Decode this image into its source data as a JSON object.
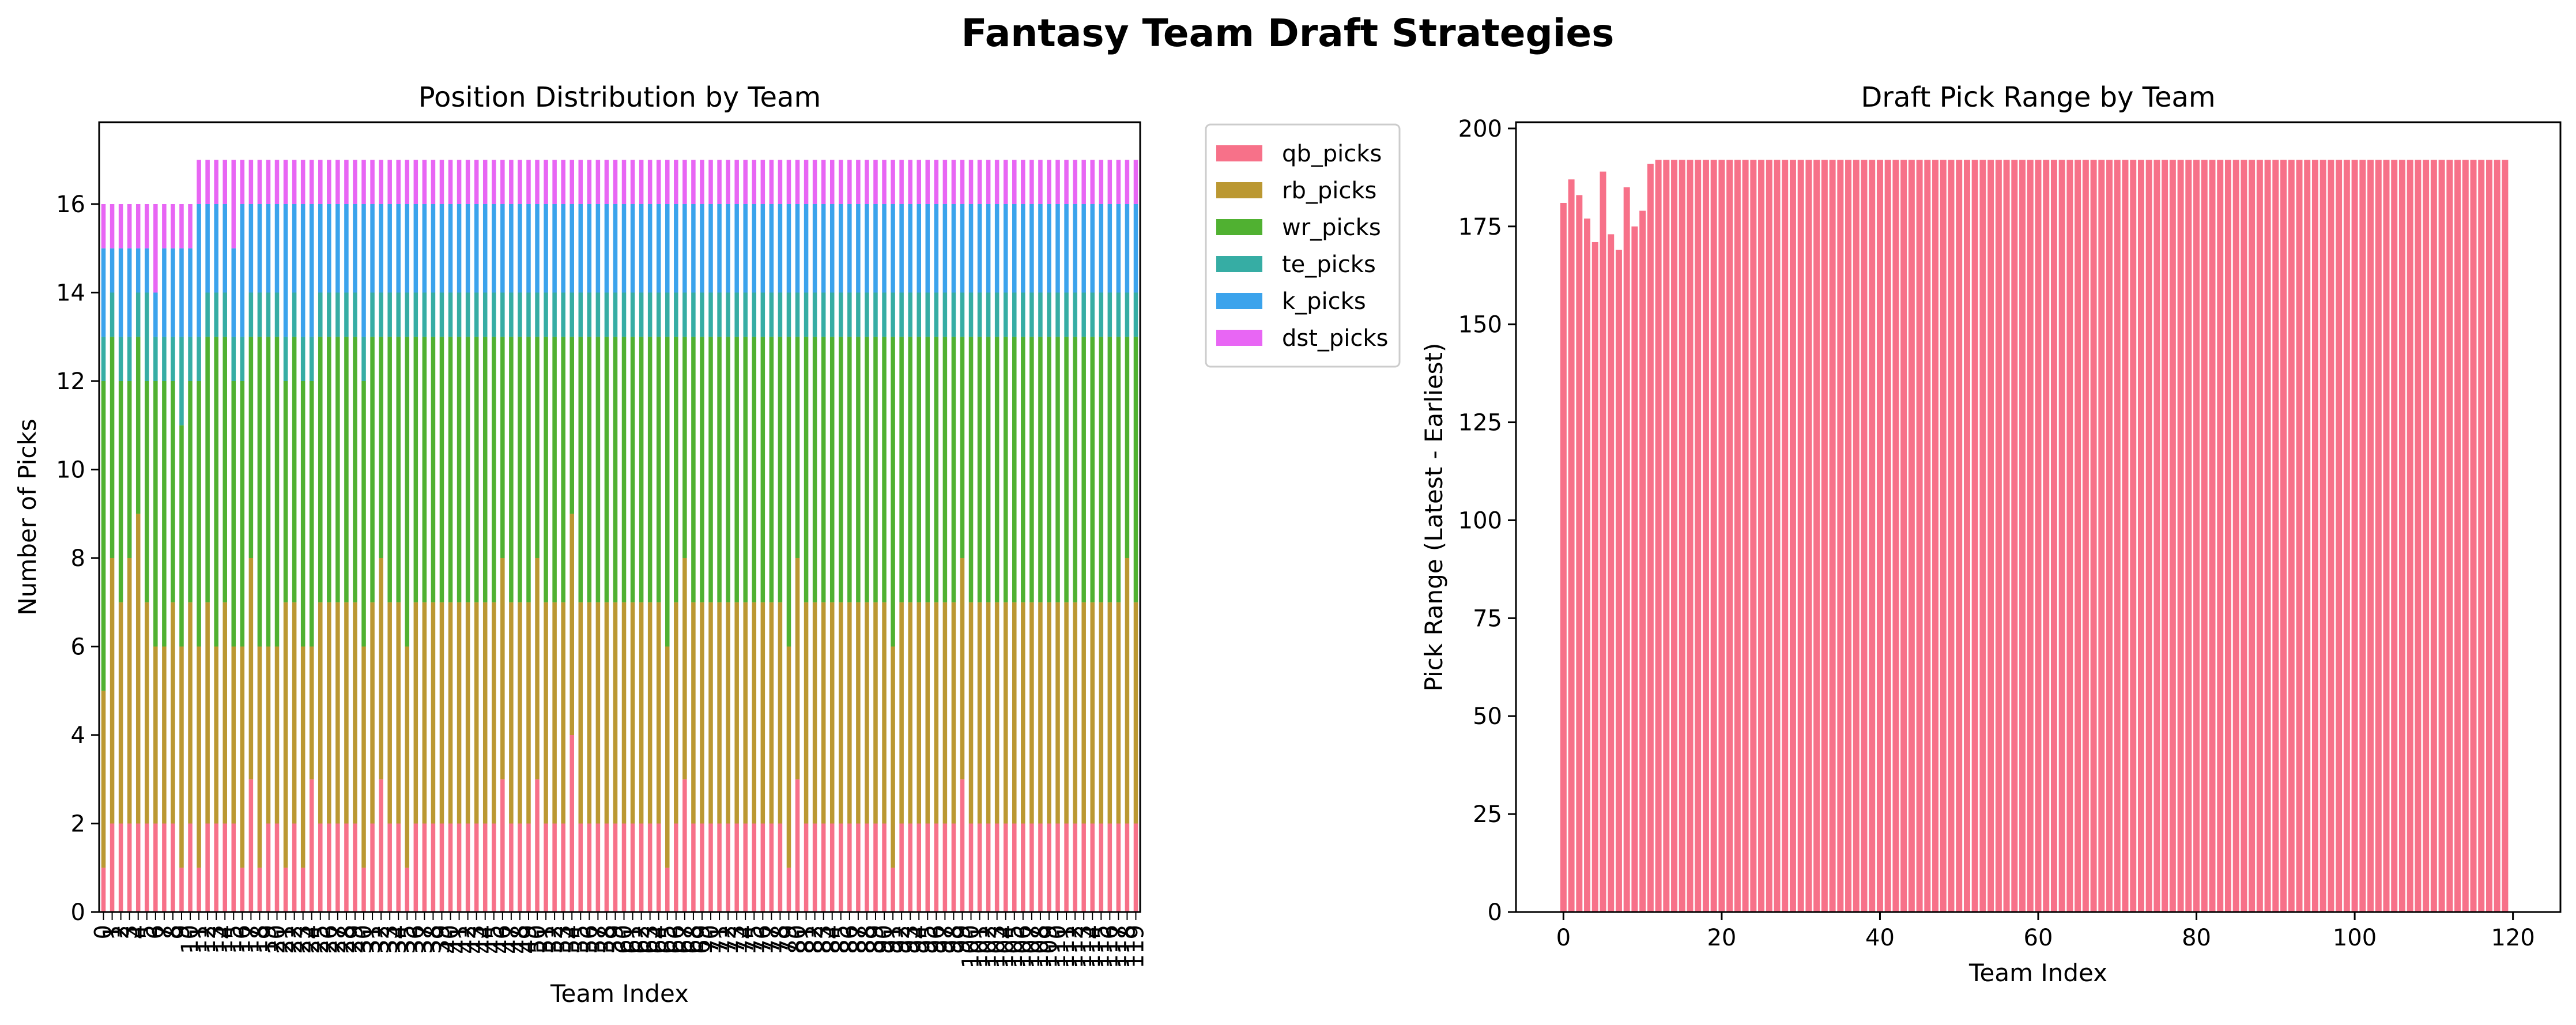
{
  "figure": {
    "title": "Fantasy Team Draft Strategies"
  },
  "chart_data": [
    {
      "type": "bar",
      "stacked": true,
      "title": "Position Distribution by Team",
      "xlabel": "Team Index",
      "ylabel": "Number of Picks",
      "ylim": [
        0,
        17.85
      ],
      "yticks": [
        0,
        2,
        4,
        6,
        8,
        10,
        12,
        14,
        16
      ],
      "x": [
        0,
        1,
        2,
        3,
        4,
        5,
        6,
        7,
        8,
        9,
        10,
        11,
        12,
        13,
        14,
        15,
        16,
        17,
        18,
        19,
        20,
        21,
        22,
        23,
        24,
        25,
        26,
        27,
        28,
        29,
        30,
        31,
        32,
        33,
        34,
        35,
        36,
        37,
        38,
        39,
        40,
        41,
        42,
        43,
        44,
        45,
        46,
        47,
        48,
        49,
        50,
        51,
        52,
        53,
        54,
        55,
        56,
        57,
        58,
        59,
        60,
        61,
        62,
        63,
        64,
        65,
        66,
        67,
        68,
        69,
        70,
        71,
        72,
        73,
        74,
        75,
        76,
        77,
        78,
        79,
        80,
        81,
        82,
        83,
        84,
        85,
        86,
        87,
        88,
        89,
        90,
        91,
        92,
        93,
        94,
        95,
        96,
        97,
        98,
        99,
        100,
        101,
        102,
        103,
        104,
        105,
        106,
        107,
        108,
        109,
        110,
        111,
        112,
        113,
        114,
        115,
        116,
        117,
        118,
        119
      ],
      "legend_position": "outside-right-top",
      "grid": false,
      "series": [
        {
          "name": "qb_picks",
          "color": "#f77189",
          "values": [
            1,
            2,
            2,
            2,
            2,
            2,
            2,
            2,
            2,
            1,
            2,
            1,
            2,
            2,
            2,
            2,
            1,
            3,
            1,
            2,
            2,
            1,
            2,
            1,
            3,
            2,
            2,
            2,
            2,
            2,
            1,
            2,
            3,
            2,
            2,
            1,
            2,
            2,
            2,
            2,
            2,
            2,
            2,
            2,
            2,
            2,
            3,
            2,
            2,
            2,
            3,
            2,
            2,
            2,
            4,
            2,
            2,
            2,
            2,
            2,
            2,
            2,
            2,
            2,
            2,
            1,
            2,
            3,
            2,
            2,
            2,
            2,
            2,
            2,
            2,
            2,
            2,
            2,
            2,
            1,
            3,
            2,
            2,
            2,
            2,
            2,
            2,
            2,
            2,
            2,
            2,
            1,
            2,
            2,
            2,
            2,
            2,
            2,
            2,
            3,
            2,
            2,
            2,
            2,
            2,
            2,
            2,
            2,
            2,
            2,
            2,
            2,
            2,
            2,
            2,
            2,
            2,
            2,
            2,
            2
          ]
        },
        {
          "name": "rb_picks",
          "color": "#bb9832",
          "values": [
            4,
            6,
            5,
            6,
            7,
            5,
            4,
            4,
            5,
            5,
            5,
            5,
            5,
            4,
            5,
            4,
            5,
            5,
            5,
            4,
            4,
            6,
            5,
            5,
            3,
            5,
            5,
            5,
            5,
            5,
            5,
            5,
            5,
            5,
            5,
            5,
            5,
            5,
            5,
            5,
            5,
            5,
            5,
            5,
            5,
            5,
            5,
            5,
            5,
            5,
            5,
            5,
            5,
            5,
            5,
            5,
            5,
            5,
            5,
            5,
            5,
            5,
            5,
            5,
            5,
            5,
            5,
            5,
            5,
            5,
            5,
            5,
            5,
            5,
            5,
            5,
            5,
            5,
            5,
            5,
            5,
            5,
            5,
            5,
            5,
            5,
            5,
            5,
            5,
            5,
            5,
            5,
            5,
            5,
            5,
            5,
            5,
            5,
            5,
            5,
            5,
            5,
            5,
            5,
            5,
            5,
            5,
            5,
            5,
            5,
            5,
            5,
            5,
            5,
            5,
            5,
            5,
            5,
            6,
            5
          ]
        },
        {
          "name": "wr_picks",
          "color": "#50b131",
          "values": [
            7,
            5,
            5,
            4,
            4,
            5,
            6,
            6,
            5,
            5,
            5,
            6,
            6,
            7,
            6,
            6,
            6,
            5,
            7,
            7,
            7,
            5,
            6,
            6,
            6,
            6,
            6,
            6,
            6,
            6,
            6,
            6,
            5,
            6,
            6,
            7,
            6,
            6,
            6,
            6,
            6,
            6,
            6,
            6,
            6,
            6,
            5,
            6,
            6,
            6,
            5,
            6,
            6,
            6,
            4,
            6,
            6,
            6,
            6,
            6,
            6,
            6,
            6,
            6,
            6,
            7,
            6,
            5,
            6,
            6,
            6,
            6,
            6,
            6,
            6,
            6,
            6,
            6,
            6,
            7,
            5,
            6,
            6,
            6,
            6,
            6,
            6,
            6,
            6,
            6,
            6,
            7,
            6,
            6,
            6,
            6,
            6,
            6,
            6,
            5,
            6,
            6,
            6,
            6,
            6,
            6,
            6,
            6,
            6,
            6,
            6,
            6,
            6,
            6,
            6,
            6,
            6,
            6,
            5,
            6
          ]
        },
        {
          "name": "te_picks",
          "color": "#36ada4",
          "values": [
            1,
            1,
            1,
            1,
            1,
            2,
            1,
            1,
            1,
            2,
            1,
            1,
            1,
            1,
            1,
            1,
            1,
            1,
            1,
            1,
            1,
            1,
            1,
            1,
            1,
            1,
            1,
            1,
            1,
            1,
            1,
            1,
            1,
            1,
            1,
            1,
            1,
            1,
            1,
            1,
            1,
            1,
            1,
            1,
            1,
            1,
            1,
            1,
            1,
            1,
            1,
            1,
            1,
            1,
            1,
            1,
            1,
            1,
            1,
            1,
            1,
            1,
            1,
            1,
            1,
            1,
            1,
            1,
            1,
            1,
            1,
            1,
            1,
            1,
            1,
            1,
            1,
            1,
            1,
            1,
            1,
            1,
            1,
            1,
            1,
            1,
            1,
            1,
            1,
            1,
            1,
            1,
            1,
            1,
            1,
            1,
            1,
            1,
            1,
            1,
            1,
            1,
            1,
            1,
            1,
            1,
            1,
            1,
            1,
            1,
            1,
            1,
            1,
            1,
            1,
            1,
            1,
            1,
            1,
            1
          ]
        },
        {
          "name": "k_picks",
          "color": "#3ba3ec",
          "values": [
            2,
            1,
            2,
            2,
            1,
            1,
            1,
            2,
            2,
            2,
            2,
            3,
            2,
            2,
            2,
            2,
            3,
            2,
            2,
            2,
            2,
            3,
            2,
            3,
            3,
            2,
            2,
            2,
            2,
            2,
            3,
            2,
            2,
            2,
            2,
            2,
            2,
            2,
            2,
            2,
            2,
            2,
            2,
            2,
            2,
            2,
            2,
            2,
            2,
            2,
            2,
            2,
            2,
            2,
            2,
            2,
            2,
            2,
            2,
            2,
            2,
            2,
            2,
            2,
            2,
            2,
            2,
            2,
            2,
            2,
            2,
            2,
            2,
            2,
            2,
            2,
            2,
            2,
            2,
            2,
            2,
            2,
            2,
            2,
            2,
            2,
            2,
            2,
            2,
            2,
            2,
            2,
            2,
            2,
            2,
            2,
            2,
            2,
            2,
            2,
            2,
            2,
            2,
            2,
            2,
            2,
            2,
            2,
            2,
            2,
            2,
            2,
            2,
            2,
            2,
            2,
            2,
            2,
            2,
            2
          ]
        },
        {
          "name": "dst_picks",
          "color": "#e866f4",
          "values": [
            1,
            1,
            1,
            1,
            1,
            1,
            2,
            1,
            1,
            1,
            1,
            1,
            1,
            1,
            1,
            2,
            1,
            1,
            1,
            1,
            1,
            1,
            1,
            1,
            1,
            1,
            1,
            1,
            1,
            1,
            1,
            1,
            1,
            1,
            1,
            1,
            1,
            1,
            1,
            1,
            1,
            1,
            1,
            1,
            1,
            1,
            1,
            1,
            1,
            1,
            1,
            1,
            1,
            1,
            1,
            1,
            1,
            1,
            1,
            1,
            1,
            1,
            1,
            1,
            1,
            1,
            1,
            1,
            1,
            1,
            1,
            1,
            1,
            1,
            1,
            1,
            1,
            1,
            1,
            1,
            1,
            1,
            1,
            1,
            1,
            1,
            1,
            1,
            1,
            1,
            1,
            1,
            1,
            1,
            1,
            1,
            1,
            1,
            1,
            1,
            1,
            1,
            1,
            1,
            1,
            1,
            1,
            1,
            1,
            1,
            1,
            1,
            1,
            1,
            1,
            1,
            1,
            1,
            1,
            1
          ]
        }
      ]
    },
    {
      "type": "bar",
      "title": "Draft Pick Range by Team",
      "xlabel": "Team Index",
      "ylabel": "Pick Range (Latest - Earliest)",
      "xlim": [
        -6,
        126
      ],
      "ylim": [
        0,
        201.6
      ],
      "xticks": [
        0,
        20,
        40,
        60,
        80,
        100,
        120
      ],
      "yticks": [
        0,
        25,
        50,
        75,
        100,
        125,
        150,
        175,
        200
      ],
      "grid": false,
      "color": "#f77189",
      "x": [
        0,
        1,
        2,
        3,
        4,
        5,
        6,
        7,
        8,
        9,
        10,
        11,
        12,
        13,
        14,
        15,
        16,
        17,
        18,
        19,
        20,
        21,
        22,
        23,
        24,
        25,
        26,
        27,
        28,
        29,
        30,
        31,
        32,
        33,
        34,
        35,
        36,
        37,
        38,
        39,
        40,
        41,
        42,
        43,
        44,
        45,
        46,
        47,
        48,
        49,
        50,
        51,
        52,
        53,
        54,
        55,
        56,
        57,
        58,
        59,
        60,
        61,
        62,
        63,
        64,
        65,
        66,
        67,
        68,
        69,
        70,
        71,
        72,
        73,
        74,
        75,
        76,
        77,
        78,
        79,
        80,
        81,
        82,
        83,
        84,
        85,
        86,
        87,
        88,
        89,
        90,
        91,
        92,
        93,
        94,
        95,
        96,
        97,
        98,
        99,
        100,
        101,
        102,
        103,
        104,
        105,
        106,
        107,
        108,
        109,
        110,
        111,
        112,
        113,
        114,
        115,
        116,
        117,
        118,
        119
      ],
      "values": [
        181,
        187,
        183,
        177,
        171,
        189,
        173,
        169,
        185,
        175,
        179,
        191,
        192,
        192,
        192,
        192,
        192,
        192,
        192,
        192,
        192,
        192,
        192,
        192,
        192,
        192,
        192,
        192,
        192,
        192,
        192,
        192,
        192,
        192,
        192,
        192,
        192,
        192,
        192,
        192,
        192,
        192,
        192,
        192,
        192,
        192,
        192,
        192,
        192,
        192,
        192,
        192,
        192,
        192,
        192,
        192,
        192,
        192,
        192,
        192,
        192,
        192,
        192,
        192,
        192,
        192,
        192,
        192,
        192,
        192,
        192,
        192,
        192,
        192,
        192,
        192,
        192,
        192,
        192,
        192,
        192,
        192,
        192,
        192,
        192,
        192,
        192,
        192,
        192,
        192,
        192,
        192,
        192,
        192,
        192,
        192,
        192,
        192,
        192,
        192,
        192,
        192,
        192,
        192,
        192,
        192,
        192,
        192,
        192,
        192,
        192,
        192,
        192,
        192,
        192,
        192,
        192,
        192,
        192,
        192
      ]
    }
  ]
}
